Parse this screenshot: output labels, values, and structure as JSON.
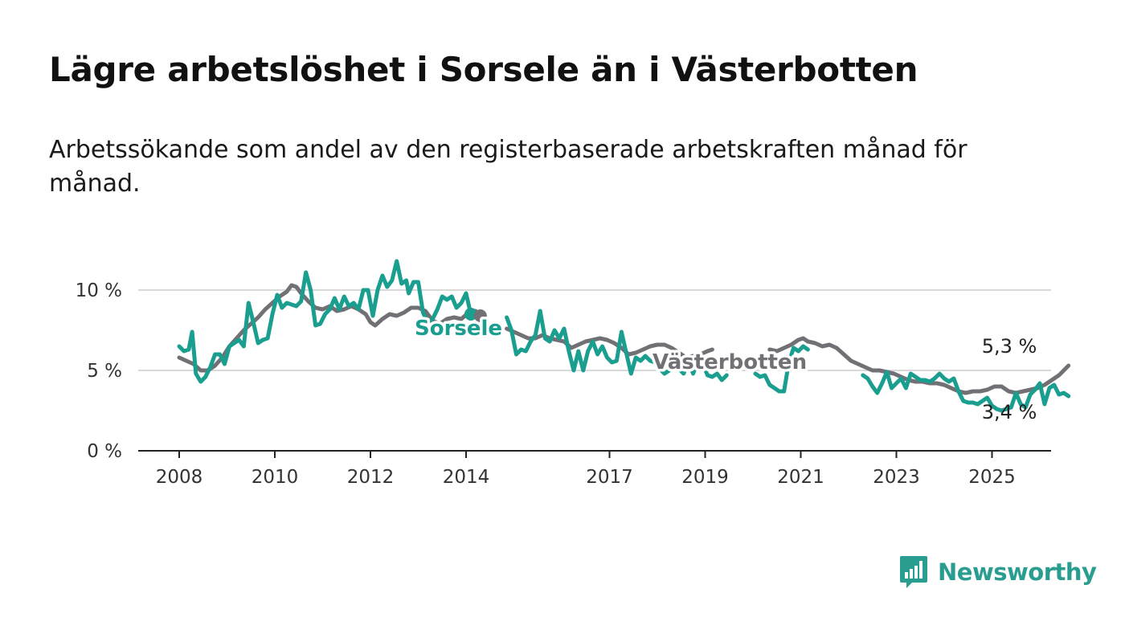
{
  "title": "Lägre arbetslöshet i Sorsele än i Västerbotten",
  "subtitle": "Arbetssökande som andel av den registerbaserade arbetskraften månad för månad.",
  "logo": {
    "text": "Newsworthy",
    "icon": "bar-chart-bubble-icon"
  },
  "colors": {
    "sorsele": "#1a9e8f",
    "vasterbotten": "#717075",
    "grid": "#d9d9d9",
    "axis": "#222222"
  },
  "chart_data": {
    "type": "line",
    "title": "",
    "xlabel": "",
    "ylabel": "",
    "xlim": [
      2007.6,
      2026.3
    ],
    "ylim": [
      0,
      10
    ],
    "x_ticks": [
      2008,
      2010,
      2012,
      2014,
      2017,
      2019,
      2021,
      2023,
      2025
    ],
    "x_tick_labels": [
      "2008",
      "2010",
      "2012",
      "2014",
      "2017",
      "2019",
      "2021",
      "2023",
      "2025"
    ],
    "y_ticks": [
      0,
      5,
      10
    ],
    "y_tick_labels": [
      "0 %",
      "5 %",
      "10 %"
    ],
    "grid": "horizontal",
    "legend": "inline labels",
    "series": [
      {
        "name": "Sorsele",
        "end_label": "3,4 %",
        "points": [
          [
            2008.0,
            6.5
          ],
          [
            2008.1,
            6.2
          ],
          [
            2008.2,
            6.3
          ],
          [
            2008.27,
            7.4
          ],
          [
            2008.35,
            4.8
          ],
          [
            2008.45,
            4.3
          ],
          [
            2008.55,
            4.6
          ],
          [
            2008.65,
            5.2
          ],
          [
            2008.75,
            6.0
          ],
          [
            2008.85,
            6.0
          ],
          [
            2008.95,
            5.4
          ],
          [
            2009.05,
            6.5
          ],
          [
            2009.15,
            6.7
          ],
          [
            2009.25,
            6.9
          ],
          [
            2009.35,
            6.5
          ],
          [
            2009.45,
            9.2
          ],
          [
            2009.55,
            8.0
          ],
          [
            2009.65,
            6.7
          ],
          [
            2009.75,
            6.9
          ],
          [
            2009.85,
            7.0
          ],
          [
            2009.95,
            8.5
          ],
          [
            2010.05,
            9.7
          ],
          [
            2010.15,
            8.9
          ],
          [
            2010.25,
            9.2
          ],
          [
            2010.35,
            9.1
          ],
          [
            2010.45,
            9.0
          ],
          [
            2010.55,
            9.3
          ],
          [
            2010.65,
            11.1
          ],
          [
            2010.75,
            10.0
          ],
          [
            2010.85,
            7.8
          ],
          [
            2010.95,
            7.9
          ],
          [
            2011.05,
            8.5
          ],
          [
            2011.15,
            8.8
          ],
          [
            2011.25,
            9.5
          ],
          [
            2011.35,
            8.8
          ],
          [
            2011.45,
            9.6
          ],
          [
            2011.55,
            9.0
          ],
          [
            2011.65,
            9.2
          ],
          [
            2011.75,
            8.8
          ],
          [
            2011.85,
            10.0
          ],
          [
            2011.95,
            10.0
          ],
          [
            2012.05,
            8.4
          ],
          [
            2012.15,
            10.0
          ],
          [
            2012.25,
            10.9
          ],
          [
            2012.35,
            10.2
          ],
          [
            2012.45,
            10.6
          ],
          [
            2012.55,
            11.8
          ],
          [
            2012.65,
            10.4
          ],
          [
            2012.75,
            10.6
          ],
          [
            2012.8,
            9.8
          ],
          [
            2012.9,
            10.5
          ],
          [
            2013.0,
            10.5
          ],
          [
            2013.1,
            8.6
          ],
          [
            2013.2,
            8.0
          ],
          [
            2013.3,
            8.2
          ],
          [
            2013.4,
            8.8
          ],
          [
            2013.5,
            9.6
          ],
          [
            2013.6,
            9.4
          ],
          [
            2013.7,
            9.6
          ],
          [
            2013.8,
            8.9
          ],
          [
            2013.9,
            9.2
          ],
          [
            2014.0,
            9.8
          ],
          [
            2014.1,
            8.5
          ]
        ]
      },
      {
        "name": "Sorsele",
        "points": [
          [
            2014.85,
            8.3
          ],
          [
            2014.95,
            7.5
          ],
          [
            2015.05,
            6.0
          ],
          [
            2015.15,
            6.3
          ],
          [
            2015.25,
            6.2
          ],
          [
            2015.35,
            6.8
          ],
          [
            2015.45,
            7.2
          ],
          [
            2015.55,
            8.7
          ],
          [
            2015.65,
            7.0
          ],
          [
            2015.75,
            6.8
          ],
          [
            2015.85,
            7.5
          ],
          [
            2015.95,
            7.0
          ],
          [
            2016.05,
            7.6
          ],
          [
            2016.15,
            6.2
          ],
          [
            2016.25,
            5.0
          ],
          [
            2016.35,
            6.2
          ],
          [
            2016.45,
            5.0
          ],
          [
            2016.55,
            6.2
          ],
          [
            2016.65,
            6.8
          ],
          [
            2016.75,
            6.0
          ],
          [
            2016.85,
            6.5
          ],
          [
            2016.95,
            5.8
          ],
          [
            2017.05,
            5.5
          ],
          [
            2017.15,
            5.6
          ],
          [
            2017.25,
            7.4
          ],
          [
            2017.35,
            6.1
          ],
          [
            2017.45,
            4.8
          ],
          [
            2017.55,
            5.8
          ],
          [
            2017.65,
            5.6
          ],
          [
            2017.75,
            5.9
          ],
          [
            2017.85,
            5.6
          ],
          [
            2017.95,
            5.5
          ],
          [
            2018.05,
            5.1
          ],
          [
            2018.15,
            4.8
          ],
          [
            2018.25,
            5.0
          ],
          [
            2018.35,
            6.0
          ],
          [
            2018.45,
            5.1
          ],
          [
            2018.55,
            4.8
          ],
          [
            2018.65,
            5.5
          ],
          [
            2018.75,
            4.8
          ],
          [
            2018.85,
            5.7
          ],
          [
            2018.95,
            5.4
          ],
          [
            2019.05,
            4.7
          ],
          [
            2019.15,
            4.6
          ],
          [
            2019.25,
            4.8
          ],
          [
            2019.35,
            4.4
          ],
          [
            2019.45,
            4.7
          ]
        ]
      },
      {
        "name": "Sorsele",
        "points": [
          [
            2020.05,
            4.8
          ],
          [
            2020.15,
            4.6
          ],
          [
            2020.25,
            4.7
          ],
          [
            2020.35,
            4.1
          ],
          [
            2020.45,
            3.9
          ],
          [
            2020.55,
            3.7
          ],
          [
            2020.65,
            3.7
          ],
          [
            2020.75,
            5.5
          ],
          [
            2020.85,
            6.4
          ],
          [
            2020.95,
            6.2
          ],
          [
            2021.05,
            6.5
          ],
          [
            2021.15,
            6.3
          ]
        ]
      },
      {
        "name": "Sorsele",
        "points": [
          [
            2022.3,
            4.7
          ],
          [
            2022.4,
            4.5
          ],
          [
            2022.5,
            4.0
          ],
          [
            2022.6,
            3.6
          ],
          [
            2022.7,
            4.2
          ],
          [
            2022.8,
            4.9
          ],
          [
            2022.9,
            3.9
          ],
          [
            2023.0,
            4.2
          ],
          [
            2023.1,
            4.5
          ],
          [
            2023.2,
            3.9
          ],
          [
            2023.3,
            4.8
          ],
          [
            2023.4,
            4.6
          ],
          [
            2023.5,
            4.4
          ],
          [
            2023.6,
            4.4
          ],
          [
            2023.7,
            4.3
          ],
          [
            2023.8,
            4.5
          ],
          [
            2023.9,
            4.8
          ],
          [
            2024.0,
            4.5
          ],
          [
            2024.1,
            4.3
          ],
          [
            2024.2,
            4.5
          ],
          [
            2024.3,
            3.7
          ],
          [
            2024.4,
            3.1
          ],
          [
            2024.5,
            3.0
          ],
          [
            2024.6,
            3.0
          ],
          [
            2024.7,
            2.9
          ],
          [
            2024.8,
            3.1
          ],
          [
            2024.9,
            3.3
          ],
          [
            2025.0,
            2.8
          ],
          [
            2025.1,
            2.6
          ],
          [
            2025.2,
            2.5
          ],
          [
            2025.3,
            2.6
          ],
          [
            2025.4,
            2.7
          ],
          [
            2025.5,
            3.6
          ],
          [
            2025.6,
            2.9
          ],
          [
            2025.7,
            2.7
          ],
          [
            2025.8,
            3.5
          ],
          [
            2025.9,
            3.8
          ],
          [
            2026.0,
            4.2
          ],
          [
            2026.1,
            2.9
          ],
          [
            2026.2,
            3.9
          ],
          [
            2026.3,
            4.1
          ],
          [
            2026.4,
            3.5
          ],
          [
            2026.5,
            3.6
          ],
          [
            2026.6,
            3.4
          ]
        ]
      },
      {
        "name": "Västerbotten",
        "end_label": "5,3 %",
        "points": [
          [
            2008.0,
            5.8
          ],
          [
            2008.15,
            5.6
          ],
          [
            2008.3,
            5.4
          ],
          [
            2008.45,
            5.0
          ],
          [
            2008.6,
            5.0
          ],
          [
            2008.75,
            5.3
          ],
          [
            2008.9,
            5.8
          ],
          [
            2009.05,
            6.5
          ],
          [
            2009.2,
            7.0
          ],
          [
            2009.35,
            7.5
          ],
          [
            2009.5,
            7.9
          ],
          [
            2009.65,
            8.3
          ],
          [
            2009.8,
            8.8
          ],
          [
            2009.95,
            9.2
          ],
          [
            2010.1,
            9.6
          ],
          [
            2010.25,
            9.9
          ],
          [
            2010.35,
            10.3
          ],
          [
            2010.45,
            10.2
          ],
          [
            2010.55,
            9.8
          ],
          [
            2010.7,
            9.3
          ],
          [
            2010.85,
            8.9
          ],
          [
            2011.0,
            8.8
          ],
          [
            2011.15,
            9.0
          ],
          [
            2011.3,
            8.7
          ],
          [
            2011.45,
            8.8
          ],
          [
            2011.6,
            9.0
          ],
          [
            2011.75,
            8.8
          ],
          [
            2011.9,
            8.5
          ],
          [
            2012.0,
            8.0
          ],
          [
            2012.1,
            7.8
          ],
          [
            2012.25,
            8.2
          ],
          [
            2012.4,
            8.5
          ],
          [
            2012.55,
            8.4
          ],
          [
            2012.7,
            8.6
          ],
          [
            2012.85,
            8.9
          ],
          [
            2013.0,
            8.9
          ],
          [
            2013.15,
            8.7
          ],
          [
            2013.3,
            8.1
          ],
          [
            2013.45,
            7.9
          ],
          [
            2013.6,
            8.2
          ],
          [
            2013.75,
            8.3
          ],
          [
            2013.9,
            8.2
          ],
          [
            2014.05,
            8.6
          ],
          [
            2014.2,
            8.7
          ],
          [
            2014.3,
            8.4
          ]
        ]
      },
      {
        "name": "Västerbotten",
        "points": [
          [
            2014.85,
            7.6
          ],
          [
            2015.0,
            7.4
          ],
          [
            2015.15,
            7.2
          ],
          [
            2015.3,
            7.0
          ],
          [
            2015.45,
            7.0
          ],
          [
            2015.6,
            7.2
          ],
          [
            2015.75,
            7.0
          ],
          [
            2015.9,
            6.9
          ],
          [
            2016.05,
            6.8
          ],
          [
            2016.2,
            6.4
          ],
          [
            2016.35,
            6.6
          ],
          [
            2016.5,
            6.8
          ],
          [
            2016.65,
            6.9
          ],
          [
            2016.8,
            7.0
          ],
          [
            2016.95,
            6.9
          ],
          [
            2017.1,
            6.7
          ],
          [
            2017.25,
            6.4
          ],
          [
            2017.4,
            6.0
          ],
          [
            2017.55,
            6.1
          ],
          [
            2017.7,
            6.3
          ],
          [
            2017.85,
            6.5
          ],
          [
            2018.0,
            6.6
          ],
          [
            2018.15,
            6.6
          ],
          [
            2018.3,
            6.4
          ],
          [
            2018.45,
            6.1
          ],
          [
            2018.6,
            5.8
          ],
          [
            2018.75,
            5.9
          ],
          [
            2018.9,
            6.0
          ],
          [
            2019.05,
            6.2
          ],
          [
            2019.15,
            6.3
          ]
        ]
      },
      {
        "name": "Västerbotten",
        "points": [
          [
            2020.35,
            6.3
          ],
          [
            2020.5,
            6.2
          ],
          [
            2020.65,
            6.4
          ],
          [
            2020.8,
            6.6
          ],
          [
            2020.95,
            6.9
          ],
          [
            2021.05,
            7.0
          ],
          [
            2021.15,
            6.8
          ],
          [
            2021.3,
            6.7
          ],
          [
            2021.45,
            6.5
          ],
          [
            2021.6,
            6.6
          ],
          [
            2021.75,
            6.4
          ],
          [
            2021.9,
            6.0
          ],
          [
            2022.05,
            5.6
          ],
          [
            2022.2,
            5.4
          ],
          [
            2022.35,
            5.2
          ],
          [
            2022.5,
            5.0
          ],
          [
            2022.65,
            5.0
          ],
          [
            2022.8,
            4.9
          ],
          [
            2022.95,
            4.8
          ],
          [
            2023.1,
            4.6
          ],
          [
            2023.25,
            4.4
          ],
          [
            2023.4,
            4.3
          ],
          [
            2023.55,
            4.3
          ],
          [
            2023.7,
            4.2
          ],
          [
            2023.85,
            4.2
          ],
          [
            2024.0,
            4.1
          ],
          [
            2024.15,
            3.9
          ],
          [
            2024.3,
            3.7
          ],
          [
            2024.45,
            3.6
          ],
          [
            2024.6,
            3.7
          ],
          [
            2024.75,
            3.7
          ],
          [
            2024.9,
            3.8
          ],
          [
            2025.05,
            4.0
          ],
          [
            2025.2,
            4.0
          ],
          [
            2025.35,
            3.7
          ],
          [
            2025.5,
            3.6
          ],
          [
            2025.65,
            3.7
          ],
          [
            2025.8,
            3.8
          ],
          [
            2025.95,
            3.9
          ],
          [
            2026.1,
            4.1
          ],
          [
            2026.25,
            4.4
          ],
          [
            2026.4,
            4.7
          ],
          [
            2026.5,
            5.0
          ],
          [
            2026.6,
            5.3
          ]
        ]
      }
    ]
  }
}
